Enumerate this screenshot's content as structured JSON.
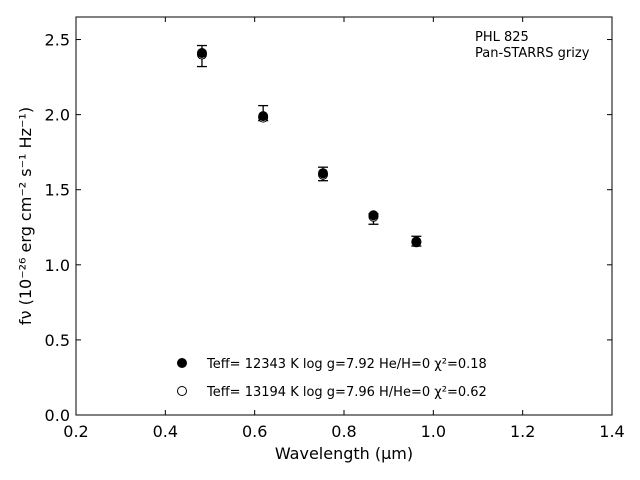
{
  "chart_data": {
    "type": "scatter",
    "annotation": [
      "PHL 825",
      "Pan-STARRS grizy"
    ],
    "xlabel": "Wavelength (μm)",
    "ylabel": "fν (10⁻²⁶ erg cm⁻² s⁻¹ Hz⁻¹)",
    "xlim": [
      0.2,
      1.4
    ],
    "ylim": [
      0.0,
      2.65
    ],
    "xticks": [
      0.2,
      0.4,
      0.6,
      0.8,
      1.0,
      1.2,
      1.4
    ],
    "xtick_labels": [
      "0.2",
      "0.4",
      "0.6",
      "0.8",
      "1.0",
      "1.2",
      "1.4"
    ],
    "yticks": [
      0.0,
      0.5,
      1.0,
      1.5,
      2.0,
      2.5
    ],
    "ytick_labels": [
      "0.0",
      "0.5",
      "1.0",
      "1.5",
      "2.0",
      "2.5"
    ],
    "grid": false,
    "legend_position": "bottom-center",
    "observed": {
      "x": [
        0.482,
        0.619,
        0.753,
        0.866,
        0.962
      ],
      "y": [
        2.39,
        2.01,
        1.6,
        1.31,
        1.155
      ],
      "yerr_low": [
        0.07,
        0.05,
        0.04,
        0.04,
        0.03
      ],
      "yerr_high": [
        0.07,
        0.05,
        0.05,
        0.03,
        0.035
      ]
    },
    "series": [
      {
        "legend": "Teff= 12343 K  log g=7.92  He/H=0  χ²=0.18",
        "marker": "filled",
        "x": [
          0.482,
          0.619,
          0.753,
          0.866,
          0.962
        ],
        "y": [
          2.41,
          1.99,
          1.61,
          1.33,
          1.15
        ]
      },
      {
        "legend": "Teff= 13194 K  log g=7.96  H/He=0  χ²=0.62",
        "marker": "open",
        "x": [
          0.482,
          0.619,
          0.753,
          0.866,
          0.962
        ],
        "y": [
          2.4,
          1.98,
          1.6,
          1.32,
          1.155
        ]
      }
    ]
  }
}
